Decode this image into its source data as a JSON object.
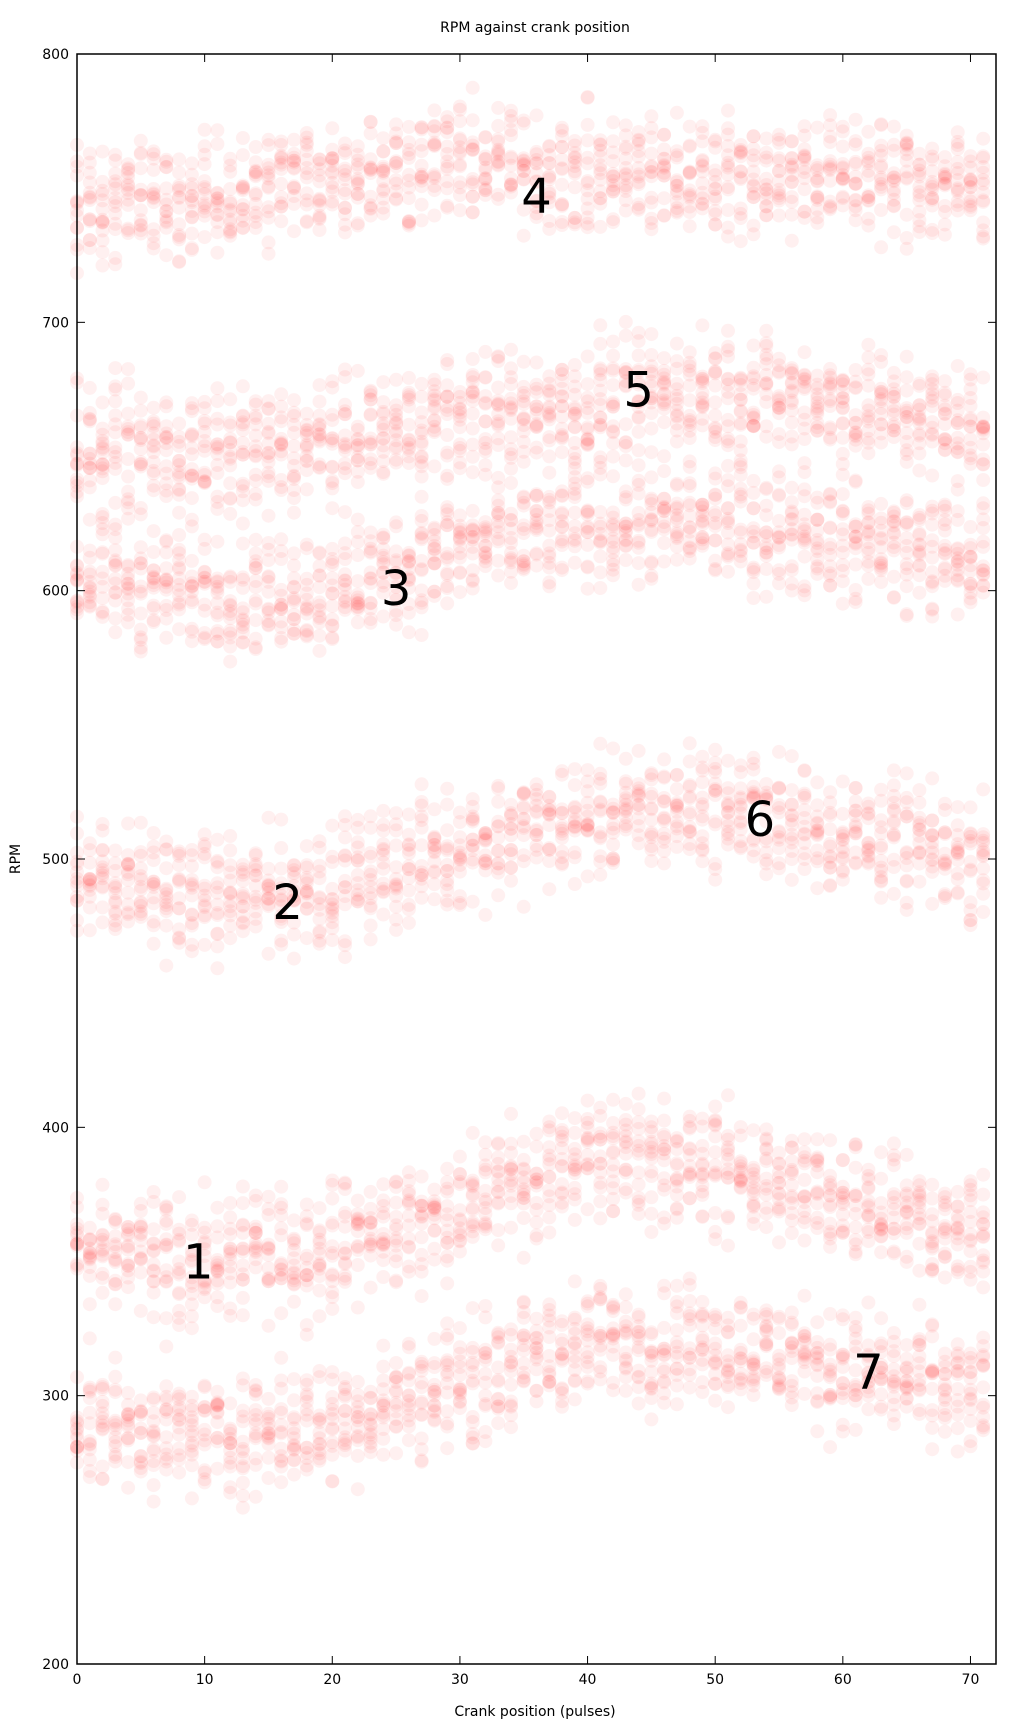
{
  "chart_data": {
    "type": "scatter",
    "title": "RPM against crank position",
    "xlabel": "Crank position (pulses)",
    "ylabel": "RPM",
    "xlim": [
      0,
      72
    ],
    "ylim": [
      200,
      800
    ],
    "xticks": [
      "0",
      "10",
      "20",
      "30",
      "40",
      "50",
      "60",
      "70"
    ],
    "yticks": [
      "200",
      "300",
      "400",
      "500",
      "600",
      "700",
      "800"
    ],
    "grid": false,
    "legend": "none",
    "marker_color": "#ff0000",
    "marker_alpha": 0.06,
    "series": [
      {
        "x": [
          0,
          10,
          20,
          30,
          40,
          50,
          60,
          71
        ],
        "y": [
          355,
          350,
          355,
          370,
          390,
          385,
          370,
          360
        ]
      },
      {
        "x": [
          0,
          10,
          20,
          30,
          40,
          50,
          60,
          71
        ],
        "y": [
          495,
          485,
          490,
          505,
          515,
          520,
          510,
          500
        ]
      },
      {
        "x": [
          0,
          10,
          20,
          30,
          40,
          50,
          60,
          71
        ],
        "y": [
          605,
          600,
          600,
          615,
          625,
          625,
          620,
          610
        ]
      },
      {
        "x": [
          0,
          10,
          20,
          30,
          40,
          50,
          60,
          71
        ],
        "y": [
          745,
          745,
          755,
          760,
          755,
          755,
          755,
          750
        ]
      },
      {
        "x": [
          0,
          10,
          20,
          30,
          40,
          50,
          60,
          71
        ],
        "y": [
          655,
          650,
          655,
          665,
          670,
          675,
          670,
          660
        ]
      },
      {
        "x": [
          0,
          10,
          20,
          30,
          40,
          50,
          60,
          71
        ],
        "y": [
          290,
          285,
          290,
          305,
          320,
          320,
          310,
          300
        ]
      }
    ],
    "annotations": [
      {
        "text": "1",
        "x": 9.5,
        "y": 350
      },
      {
        "text": "2",
        "x": 16.5,
        "y": 484
      },
      {
        "text": "3",
        "x": 25,
        "y": 601
      },
      {
        "text": "4",
        "x": 36,
        "y": 747
      },
      {
        "text": "5",
        "x": 44,
        "y": 675
      },
      {
        "text": "6",
        "x": 53.5,
        "y": 515
      },
      {
        "text": "7",
        "x": 62,
        "y": 309
      }
    ]
  }
}
